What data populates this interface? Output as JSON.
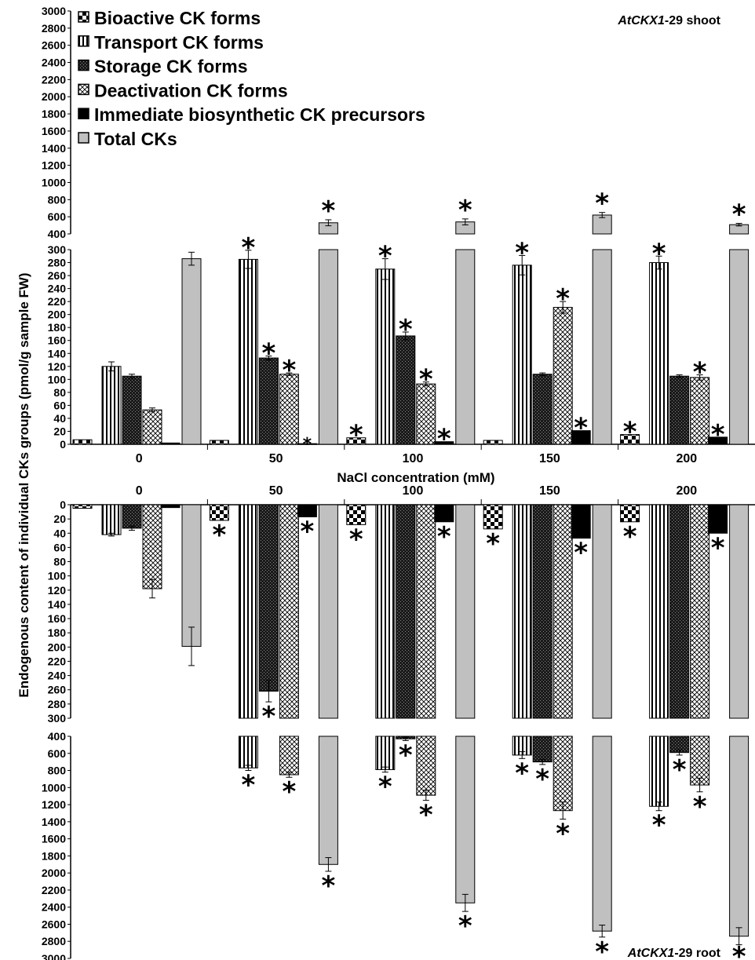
{
  "chart_data": {
    "type": "bar",
    "ylabel": "Endogenous content of individual CKs groups (pmol/g sample FW)",
    "xlabel": "NaCl concentration (mM)",
    "categories": [
      "0",
      "50",
      "100",
      "150",
      "200"
    ],
    "legend_position": "top-left",
    "series_styles": [
      {
        "name": "Bioactive CK   forms",
        "pattern": "bigcheck"
      },
      {
        "name": "Transport CK   forms",
        "pattern": "vlines"
      },
      {
        "name": "Storage CK   forms",
        "pattern": "darkcheck"
      },
      {
        "name": "Deactivation CK   forms",
        "pattern": "crosshatch"
      },
      {
        "name": "Immediate biosynthetic CK  precursors",
        "pattern": "solid-black"
      },
      {
        "name": "Total CKs",
        "pattern": "solid-gray"
      }
    ],
    "colors": {
      "black": "#000000",
      "gray": "#c0c0c0",
      "white": "#ffffff"
    },
    "panels": [
      {
        "title": "AtCKX1-29 shoot",
        "title_italic": "AtCKX1",
        "title_rest": "-29 shoot",
        "direction": "up",
        "ylim_lower": [
          0,
          300
        ],
        "ylim_upper": [
          400,
          3000
        ],
        "yticks_lower": [
          0,
          20,
          40,
          60,
          80,
          100,
          120,
          140,
          160,
          180,
          200,
          220,
          240,
          260,
          280,
          300
        ],
        "yticks_upper": [
          400,
          600,
          800,
          1000,
          1200,
          1400,
          1600,
          1800,
          2000,
          2200,
          2400,
          2600,
          2800,
          3000
        ],
        "series": [
          {
            "name": "Bioactive CK   forms",
            "values": [
              7,
              6,
              10,
              6,
              15
            ],
            "errors": [
              0,
              0,
              0,
              0,
              0
            ],
            "sig": [
              false,
              false,
              true,
              false,
              true
            ]
          },
          {
            "name": "Transport CK   forms",
            "values": [
              120,
              285,
              270,
              276,
              280
            ],
            "errors": [
              7,
              14,
              16,
              15,
              10
            ],
            "sig": [
              false,
              true,
              true,
              true,
              true
            ]
          },
          {
            "name": "Storage CK   forms",
            "values": [
              105,
              133,
              167,
              108,
              105
            ],
            "errors": [
              3,
              3,
              6,
              2,
              2
            ],
            "sig": [
              false,
              true,
              true,
              false,
              false
            ]
          },
          {
            "name": "Deactivation CK   forms",
            "values": [
              53,
              108,
              93,
              211,
              103
            ],
            "errors": [
              3,
              2,
              3,
              9,
              4
            ],
            "sig": [
              false,
              true,
              true,
              true,
              true
            ]
          },
          {
            "name": "Immediate biosynthetic CK  precursors",
            "values": [
              2,
              1,
              4,
              21,
              11
            ],
            "errors": [
              0,
              0,
              0,
              0,
              0
            ],
            "sig": [
              false,
              true,
              true,
              true,
              true
            ]
          },
          {
            "name": "Total CKs",
            "values": [
              286,
              530,
              540,
              620,
              508
            ],
            "errors": [
              10,
              35,
              35,
              30,
              15
            ],
            "sig": [
              false,
              true,
              true,
              true,
              true
            ]
          }
        ]
      },
      {
        "title": "AtCKX1-29 root",
        "title_italic": "AtCKX1",
        "title_rest": "-29 root",
        "direction": "down",
        "ylim_lower": [
          0,
          300
        ],
        "ylim_upper": [
          400,
          3000
        ],
        "yticks_lower": [
          0,
          20,
          40,
          60,
          80,
          100,
          120,
          140,
          160,
          180,
          200,
          220,
          240,
          260,
          280,
          300
        ],
        "yticks_upper": [
          400,
          600,
          800,
          1000,
          1200,
          1400,
          1600,
          1800,
          2000,
          2200,
          2400,
          2600,
          2800,
          3000
        ],
        "series": [
          {
            "name": "Bioactive CK   forms",
            "values": [
              5,
              22,
              28,
              34,
              24
            ],
            "errors": [
              0,
              0,
              0,
              0,
              0
            ],
            "sig": [
              false,
              true,
              true,
              true,
              true
            ]
          },
          {
            "name": "Transport CK   forms",
            "values": [
              42,
              770,
              790,
              620,
              1220
            ],
            "errors": [
              2,
              30,
              30,
              40,
              50
            ],
            "sig": [
              false,
              true,
              true,
              true,
              true
            ]
          },
          {
            "name": "Storage CK   forms",
            "values": [
              33,
              262,
              430,
              700,
              590
            ],
            "errors": [
              3,
              15,
              20,
              30,
              30
            ],
            "sig": [
              false,
              true,
              true,
              true,
              true
            ]
          },
          {
            "name": "Deactivation CK   forms",
            "values": [
              118,
              850,
              1090,
              1270,
              970
            ],
            "errors": [
              13,
              30,
              60,
              100,
              80
            ],
            "sig": [
              false,
              true,
              true,
              true,
              true
            ]
          },
          {
            "name": "Immediate biosynthetic CK  precursors",
            "values": [
              4,
              17,
              24,
              47,
              40
            ],
            "errors": [
              0,
              0,
              0,
              0,
              0
            ],
            "sig": [
              false,
              true,
              true,
              true,
              true
            ]
          },
          {
            "name": "Total CKs",
            "values": [
              199,
              1900,
              2350,
              2680,
              2740
            ],
            "errors": [
              27,
              80,
              100,
              70,
              100
            ],
            "sig": [
              false,
              true,
              true,
              true,
              true
            ]
          }
        ]
      }
    ],
    "star_label": "*"
  }
}
